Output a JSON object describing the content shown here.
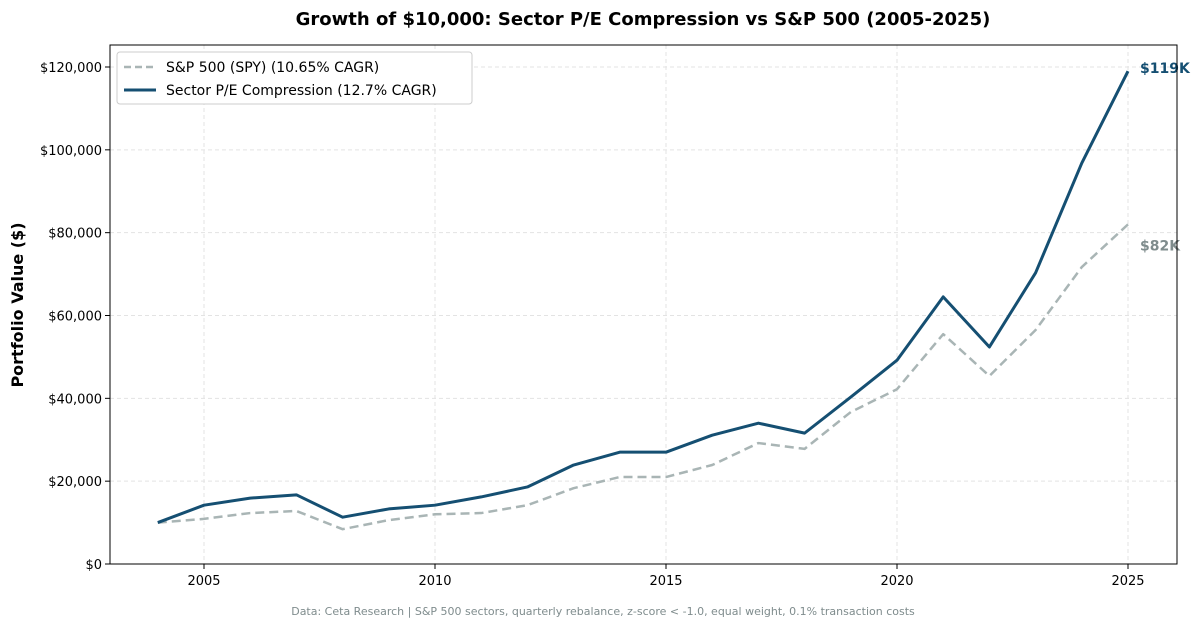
{
  "chart_data": {
    "type": "line",
    "title": "Growth of $10,000: Sector P/E Compression vs S&P 500 (2005-2025)",
    "xlabel": "",
    "ylabel": "Portfolio Value ($)",
    "xlim": [
      2003,
      2026.1
    ],
    "ylim": [
      0,
      125000
    ],
    "x_ticks": [
      2005,
      2010,
      2015,
      2020,
      2025
    ],
    "x_tick_labels": [
      "2005",
      "2010",
      "2015",
      "2020",
      "2025"
    ],
    "y_ticks": [
      0,
      20000,
      40000,
      60000,
      80000,
      100000,
      120000
    ],
    "y_tick_labels": [
      "$0",
      "$20,000",
      "$40,000",
      "$60,000",
      "$80,000",
      "$100,000",
      "$120,000"
    ],
    "grid": true,
    "legend_position": "top-left",
    "x": [
      2004,
      2005,
      2006,
      2007,
      2008,
      2009,
      2010,
      2011,
      2012,
      2013,
      2014,
      2015,
      2016,
      2017,
      2018,
      2019,
      2020,
      2021,
      2022,
      2023,
      2024,
      2025
    ],
    "series": [
      {
        "name": "S&P 500 (SPY) (10.65% CAGR)",
        "color": "#a9b5b5",
        "style": "dashed",
        "values": [
          10000,
          10900,
          12300,
          12800,
          8400,
          10600,
          12000,
          12300,
          14200,
          18300,
          21000,
          21000,
          23900,
          29200,
          27800,
          36700,
          42200,
          55500,
          45400,
          56500,
          71700,
          82000
        ],
        "end_label": "$82K",
        "end_label_color": "#7f8c8d"
      },
      {
        "name": "Sector P/E Compression (12.7% CAGR)",
        "color": "#154f72",
        "style": "solid",
        "values": [
          10000,
          14200,
          15900,
          16700,
          11300,
          13300,
          14200,
          16200,
          18600,
          23900,
          27000,
          27000,
          31100,
          34000,
          31600,
          40300,
          49200,
          64500,
          52400,
          70300,
          96800,
          119000
        ],
        "end_label": "$119K",
        "end_label_color": "#154f72"
      }
    ],
    "footnote": "Data: Ceta Research | S&P 500 sectors, quarterly rebalance, z-score < -1.0, equal weight, 0.1% transaction costs"
  }
}
